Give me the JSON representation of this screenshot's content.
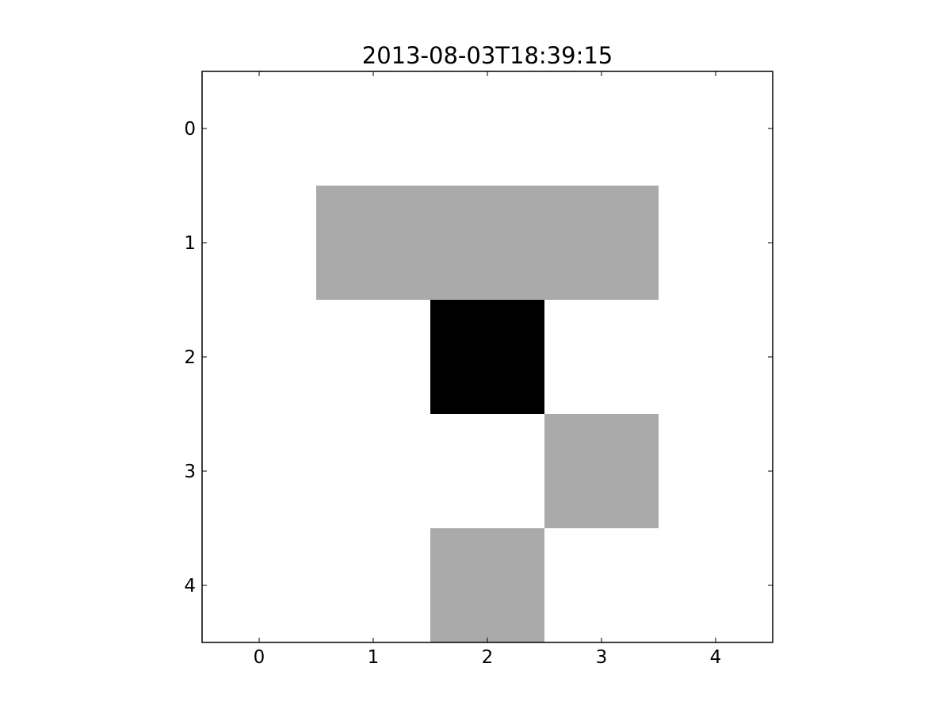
{
  "chart_data": {
    "type": "heatmap",
    "title": "2013-08-03T18:39:15",
    "xlabel": "",
    "ylabel": "",
    "x_ticks": [
      "0",
      "1",
      "2",
      "3",
      "4"
    ],
    "y_ticks": [
      "0",
      "1",
      "2",
      "3",
      "4"
    ],
    "xlim": [
      -0.5,
      4.5
    ],
    "ylim": [
      4.5,
      -0.5
    ],
    "y_axis_inverted": true,
    "grid": false,
    "colormap": "gray_r",
    "value_range": [
      0,
      2
    ],
    "values": [
      [
        0,
        0,
        0,
        0,
        0
      ],
      [
        0,
        1,
        1,
        1,
        0
      ],
      [
        0,
        0,
        2,
        0,
        0
      ],
      [
        0,
        0,
        0,
        1,
        0
      ],
      [
        0,
        0,
        1,
        0,
        0
      ]
    ],
    "colors": {
      "background": "#ffffff",
      "axes_frame": "#000000",
      "level_0": "#ffffff",
      "level_1": "#aaaaaa",
      "level_2": "#000000"
    }
  }
}
